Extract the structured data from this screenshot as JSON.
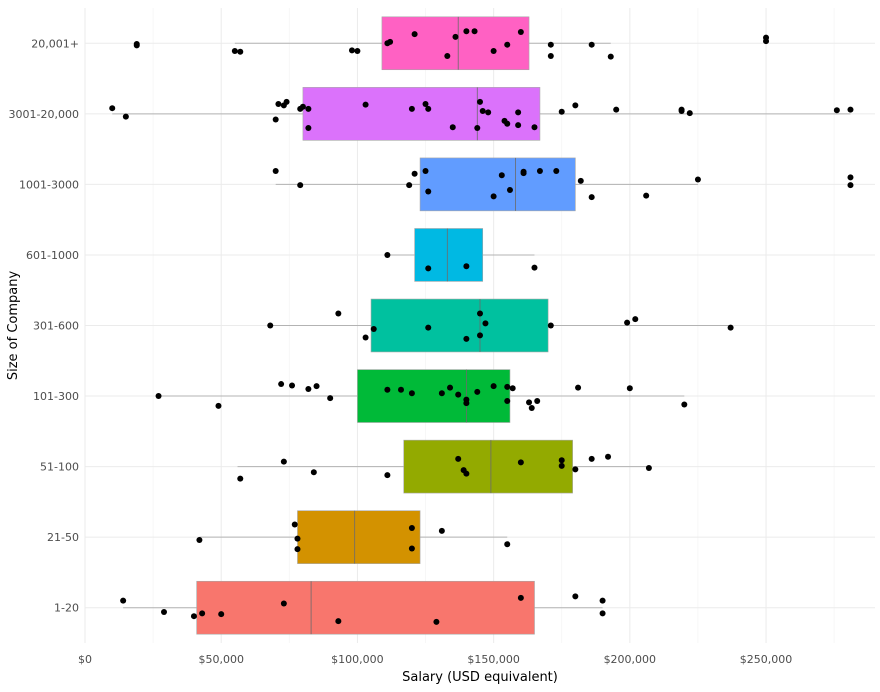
{
  "chart_data": {
    "type": "boxplot",
    "orientation": "horizontal",
    "xlabel": "Salary (USD equivalent)",
    "ylabel": "Size of Company",
    "xlim": [
      0,
      290000
    ],
    "x_ticks": [
      0,
      50000,
      100000,
      150000,
      200000,
      250000
    ],
    "x_tick_labels": [
      "$0",
      "$50,000",
      "$100,000",
      "$150,000",
      "$200,000",
      "$250,000"
    ],
    "grid": true,
    "legend": "none",
    "categories": [
      "1-20",
      "21-50",
      "51-100",
      "101-300",
      "301-600",
      "601-1000",
      "1001-3000",
      "3001-20,000",
      "20,001+"
    ],
    "boxes": [
      {
        "category": "1-20",
        "color": "#F8766D",
        "whisker_low": 14000,
        "q1": 41000,
        "median": 83000,
        "q3": 165000,
        "whisker_high": 190000
      },
      {
        "category": "21-50",
        "color": "#D39200",
        "whisker_low": 42000,
        "q1": 78000,
        "median": 99000,
        "q3": 123000,
        "whisker_high": 155000
      },
      {
        "category": "51-100",
        "color": "#93AA00",
        "whisker_low": 56000,
        "q1": 117000,
        "median": 149000,
        "q3": 179000,
        "whisker_high": 207000
      },
      {
        "category": "101-300",
        "color": "#00BA38",
        "whisker_low": 26000,
        "q1": 100000,
        "median": 140000,
        "q3": 156000,
        "whisker_high": 220000
      },
      {
        "category": "301-600",
        "color": "#00C19F",
        "whisker_low": 68000,
        "q1": 105000,
        "median": 145000,
        "q3": 170000,
        "whisker_high": 237000
      },
      {
        "category": "601-1000",
        "color": "#00B9E3",
        "whisker_low": 111000,
        "q1": 121000,
        "median": 133000,
        "q3": 146000,
        "whisker_high": 165000
      },
      {
        "category": "1001-3000",
        "color": "#619CFF",
        "whisker_low": 70000,
        "q1": 123000,
        "median": 158000,
        "q3": 180000,
        "whisker_high": 225000
      },
      {
        "category": "3001-20,000",
        "color": "#DB72FB",
        "whisker_low": 10000,
        "q1": 80000,
        "median": 144000,
        "q3": 167000,
        "whisker_high": 281000
      },
      {
        "category": "20,001+",
        "color": "#FF61C3",
        "whisker_low": 55000,
        "q1": 109000,
        "median": 137000,
        "q3": 163000,
        "whisker_high": 193000
      }
    ],
    "points": [
      {
        "category": "1-20",
        "x": 14000,
        "jitter": -0.1
      },
      {
        "category": "1-20",
        "x": 29000,
        "jitter": 0.06
      },
      {
        "category": "1-20",
        "x": 40000,
        "jitter": 0.12
      },
      {
        "category": "1-20",
        "x": 43000,
        "jitter": 0.08
      },
      {
        "category": "1-20",
        "x": 50000,
        "jitter": 0.09
      },
      {
        "category": "1-20",
        "x": 73000,
        "jitter": -0.06
      },
      {
        "category": "1-20",
        "x": 93000,
        "jitter": 0.19
      },
      {
        "category": "1-20",
        "x": 129000,
        "jitter": 0.2
      },
      {
        "category": "1-20",
        "x": 160000,
        "jitter": -0.14
      },
      {
        "category": "1-20",
        "x": 180000,
        "jitter": -0.16
      },
      {
        "category": "1-20",
        "x": 190000,
        "jitter": 0.08
      },
      {
        "category": "1-20",
        "x": 190000,
        "jitter": -0.1
      },
      {
        "category": "21-50",
        "x": 42000,
        "jitter": 0.04
      },
      {
        "category": "21-50",
        "x": 77000,
        "jitter": -0.18
      },
      {
        "category": "21-50",
        "x": 78000,
        "jitter": 0.17
      },
      {
        "category": "21-50",
        "x": 78000,
        "jitter": 0.02
      },
      {
        "category": "21-50",
        "x": 120000,
        "jitter": 0.16
      },
      {
        "category": "21-50",
        "x": 120000,
        "jitter": -0.13
      },
      {
        "category": "21-50",
        "x": 131000,
        "jitter": -0.09
      },
      {
        "category": "21-50",
        "x": 155000,
        "jitter": 0.1
      },
      {
        "category": "51-100",
        "x": 57000,
        "jitter": 0.17
      },
      {
        "category": "51-100",
        "x": 73000,
        "jitter": -0.07
      },
      {
        "category": "51-100",
        "x": 84000,
        "jitter": 0.08
      },
      {
        "category": "51-100",
        "x": 111000,
        "jitter": 0.12
      },
      {
        "category": "51-100",
        "x": 137000,
        "jitter": -0.11
      },
      {
        "category": "51-100",
        "x": 139000,
        "jitter": 0.05
      },
      {
        "category": "51-100",
        "x": 140000,
        "jitter": 0.1
      },
      {
        "category": "51-100",
        "x": 160000,
        "jitter": -0.06
      },
      {
        "category": "51-100",
        "x": 175000,
        "jitter": -0.01
      },
      {
        "category": "51-100",
        "x": 175000,
        "jitter": -0.09
      },
      {
        "category": "51-100",
        "x": 180000,
        "jitter": 0.04
      },
      {
        "category": "51-100",
        "x": 186000,
        "jitter": -0.11
      },
      {
        "category": "51-100",
        "x": 192000,
        "jitter": -0.14
      },
      {
        "category": "51-100",
        "x": 207000,
        "jitter": 0.02
      },
      {
        "category": "101-300",
        "x": 27000,
        "jitter": 0.0
      },
      {
        "category": "101-300",
        "x": 49000,
        "jitter": 0.14
      },
      {
        "category": "101-300",
        "x": 72000,
        "jitter": -0.17
      },
      {
        "category": "101-300",
        "x": 76000,
        "jitter": -0.15
      },
      {
        "category": "101-300",
        "x": 82000,
        "jitter": -0.1
      },
      {
        "category": "101-300",
        "x": 85000,
        "jitter": -0.14
      },
      {
        "category": "101-300",
        "x": 90000,
        "jitter": 0.03
      },
      {
        "category": "101-300",
        "x": 111000,
        "jitter": -0.09
      },
      {
        "category": "101-300",
        "x": 116000,
        "jitter": -0.09
      },
      {
        "category": "101-300",
        "x": 120000,
        "jitter": -0.04
      },
      {
        "category": "101-300",
        "x": 131000,
        "jitter": -0.04
      },
      {
        "category": "101-300",
        "x": 134000,
        "jitter": -0.12
      },
      {
        "category": "101-300",
        "x": 137000,
        "jitter": -0.02
      },
      {
        "category": "101-300",
        "x": 140000,
        "jitter": 0.1
      },
      {
        "category": "101-300",
        "x": 140000,
        "jitter": 0.05
      },
      {
        "category": "101-300",
        "x": 144000,
        "jitter": -0.06
      },
      {
        "category": "101-300",
        "x": 150000,
        "jitter": -0.14
      },
      {
        "category": "101-300",
        "x": 155000,
        "jitter": 0.07
      },
      {
        "category": "101-300",
        "x": 155000,
        "jitter": -0.13
      },
      {
        "category": "101-300",
        "x": 157000,
        "jitter": -0.11
      },
      {
        "category": "101-300",
        "x": 163000,
        "jitter": 0.09
      },
      {
        "category": "101-300",
        "x": 164000,
        "jitter": 0.17
      },
      {
        "category": "101-300",
        "x": 166000,
        "jitter": 0.07
      },
      {
        "category": "101-300",
        "x": 181000,
        "jitter": -0.12
      },
      {
        "category": "101-300",
        "x": 200000,
        "jitter": -0.11
      },
      {
        "category": "101-300",
        "x": 220000,
        "jitter": 0.12
      },
      {
        "category": "301-600",
        "x": 68000,
        "jitter": 0.0
      },
      {
        "category": "301-600",
        "x": 93000,
        "jitter": -0.17
      },
      {
        "category": "301-600",
        "x": 103000,
        "jitter": 0.17
      },
      {
        "category": "301-600",
        "x": 106000,
        "jitter": 0.05
      },
      {
        "category": "301-600",
        "x": 126000,
        "jitter": 0.03
      },
      {
        "category": "301-600",
        "x": 140000,
        "jitter": 0.19
      },
      {
        "category": "301-600",
        "x": 145000,
        "jitter": 0.14
      },
      {
        "category": "301-600",
        "x": 145000,
        "jitter": -0.17
      },
      {
        "category": "301-600",
        "x": 147000,
        "jitter": -0.03
      },
      {
        "category": "301-600",
        "x": 171000,
        "jitter": 0.0
      },
      {
        "category": "301-600",
        "x": 199000,
        "jitter": -0.04
      },
      {
        "category": "301-600",
        "x": 202000,
        "jitter": -0.09
      },
      {
        "category": "301-600",
        "x": 237000,
        "jitter": 0.03
      },
      {
        "category": "601-1000",
        "x": 111000,
        "jitter": 0.0
      },
      {
        "category": "601-1000",
        "x": 126000,
        "jitter": 0.19
      },
      {
        "category": "601-1000",
        "x": 140000,
        "jitter": 0.16
      },
      {
        "category": "601-1000",
        "x": 165000,
        "jitter": 0.18
      },
      {
        "category": "1001-3000",
        "x": 70000,
        "jitter": -0.19
      },
      {
        "category": "1001-3000",
        "x": 79000,
        "jitter": 0.01
      },
      {
        "category": "1001-3000",
        "x": 119000,
        "jitter": 0.01
      },
      {
        "category": "1001-3000",
        "x": 121000,
        "jitter": -0.15
      },
      {
        "category": "1001-3000",
        "x": 125000,
        "jitter": -0.19
      },
      {
        "category": "1001-3000",
        "x": 126000,
        "jitter": 0.1
      },
      {
        "category": "1001-3000",
        "x": 150000,
        "jitter": 0.17
      },
      {
        "category": "1001-3000",
        "x": 153000,
        "jitter": -0.13
      },
      {
        "category": "1001-3000",
        "x": 156000,
        "jitter": 0.08
      },
      {
        "category": "1001-3000",
        "x": 161000,
        "jitter": -0.16
      },
      {
        "category": "1001-3000",
        "x": 161000,
        "jitter": -0.18
      },
      {
        "category": "1001-3000",
        "x": 167000,
        "jitter": -0.19
      },
      {
        "category": "1001-3000",
        "x": 173000,
        "jitter": -0.19
      },
      {
        "category": "1001-3000",
        "x": 182000,
        "jitter": -0.05
      },
      {
        "category": "1001-3000",
        "x": 186000,
        "jitter": 0.18
      },
      {
        "category": "1001-3000",
        "x": 206000,
        "jitter": 0.16
      },
      {
        "category": "1001-3000",
        "x": 225000,
        "jitter": -0.07
      },
      {
        "category": "1001-3000",
        "x": 281000,
        "jitter": 0.01
      },
      {
        "category": "1001-3000",
        "x": 281000,
        "jitter": -0.1
      },
      {
        "category": "3001-20,000",
        "x": 10000,
        "jitter": -0.08
      },
      {
        "category": "3001-20,000",
        "x": 15000,
        "jitter": 0.04
      },
      {
        "category": "3001-20,000",
        "x": 70000,
        "jitter": 0.08
      },
      {
        "category": "3001-20,000",
        "x": 71000,
        "jitter": -0.14
      },
      {
        "category": "3001-20,000",
        "x": 73000,
        "jitter": -0.12
      },
      {
        "category": "3001-20,000",
        "x": 74000,
        "jitter": -0.17
      },
      {
        "category": "3001-20,000",
        "x": 79000,
        "jitter": -0.07
      },
      {
        "category": "3001-20,000",
        "x": 80000,
        "jitter": -0.1
      },
      {
        "category": "3001-20,000",
        "x": 82000,
        "jitter": 0.2
      },
      {
        "category": "3001-20,000",
        "x": 82000,
        "jitter": -0.07
      },
      {
        "category": "3001-20,000",
        "x": 103000,
        "jitter": -0.13
      },
      {
        "category": "3001-20,000",
        "x": 120000,
        "jitter": -0.07
      },
      {
        "category": "3001-20,000",
        "x": 125000,
        "jitter": -0.14
      },
      {
        "category": "3001-20,000",
        "x": 126000,
        "jitter": -0.07
      },
      {
        "category": "3001-20,000",
        "x": 135000,
        "jitter": 0.19
      },
      {
        "category": "3001-20,000",
        "x": 144000,
        "jitter": 0.2
      },
      {
        "category": "3001-20,000",
        "x": 145000,
        "jitter": -0.17
      },
      {
        "category": "3001-20,000",
        "x": 146000,
        "jitter": -0.04
      },
      {
        "category": "3001-20,000",
        "x": 148000,
        "jitter": -0.02
      },
      {
        "category": "3001-20,000",
        "x": 154000,
        "jitter": 0.1
      },
      {
        "category": "3001-20,000",
        "x": 155000,
        "jitter": 0.14
      },
      {
        "category": "3001-20,000",
        "x": 159000,
        "jitter": -0.02
      },
      {
        "category": "3001-20,000",
        "x": 159000,
        "jitter": 0.16
      },
      {
        "category": "3001-20,000",
        "x": 165000,
        "jitter": 0.19
      },
      {
        "category": "3001-20,000",
        "x": 175000,
        "jitter": -0.03
      },
      {
        "category": "3001-20,000",
        "x": 180000,
        "jitter": -0.12
      },
      {
        "category": "3001-20,000",
        "x": 195000,
        "jitter": -0.06
      },
      {
        "category": "3001-20,000",
        "x": 219000,
        "jitter": -0.04
      },
      {
        "category": "3001-20,000",
        "x": 219000,
        "jitter": -0.06
      },
      {
        "category": "3001-20,000",
        "x": 222000,
        "jitter": -0.01
      },
      {
        "category": "3001-20,000",
        "x": 276000,
        "jitter": -0.05
      },
      {
        "category": "3001-20,000",
        "x": 281000,
        "jitter": -0.06
      },
      {
        "category": "20,001+",
        "x": 19000,
        "jitter": 0.03
      },
      {
        "category": "20,001+",
        "x": 19000,
        "jitter": 0.01
      },
      {
        "category": "20,001+",
        "x": 55000,
        "jitter": 0.11
      },
      {
        "category": "20,001+",
        "x": 57000,
        "jitter": 0.12
      },
      {
        "category": "20,001+",
        "x": 98000,
        "jitter": 0.1
      },
      {
        "category": "20,001+",
        "x": 100000,
        "jitter": 0.11
      },
      {
        "category": "20,001+",
        "x": 111000,
        "jitter": 0.0
      },
      {
        "category": "20,001+",
        "x": 112000,
        "jitter": -0.02
      },
      {
        "category": "20,001+",
        "x": 121000,
        "jitter": -0.13
      },
      {
        "category": "20,001+",
        "x": 133000,
        "jitter": 0.18
      },
      {
        "category": "20,001+",
        "x": 136000,
        "jitter": -0.09
      },
      {
        "category": "20,001+",
        "x": 140000,
        "jitter": -0.17
      },
      {
        "category": "20,001+",
        "x": 143000,
        "jitter": -0.17
      },
      {
        "category": "20,001+",
        "x": 150000,
        "jitter": 0.11
      },
      {
        "category": "20,001+",
        "x": 155000,
        "jitter": 0.02
      },
      {
        "category": "20,001+",
        "x": 160000,
        "jitter": -0.16
      },
      {
        "category": "20,001+",
        "x": 171000,
        "jitter": 0.18
      },
      {
        "category": "20,001+",
        "x": 171000,
        "jitter": 0.02
      },
      {
        "category": "20,001+",
        "x": 186000,
        "jitter": 0.02
      },
      {
        "category": "20,001+",
        "x": 193000,
        "jitter": 0.19
      },
      {
        "category": "20,001+",
        "x": 250000,
        "jitter": -0.03
      },
      {
        "category": "20,001+",
        "x": 250000,
        "jitter": -0.08
      }
    ]
  }
}
